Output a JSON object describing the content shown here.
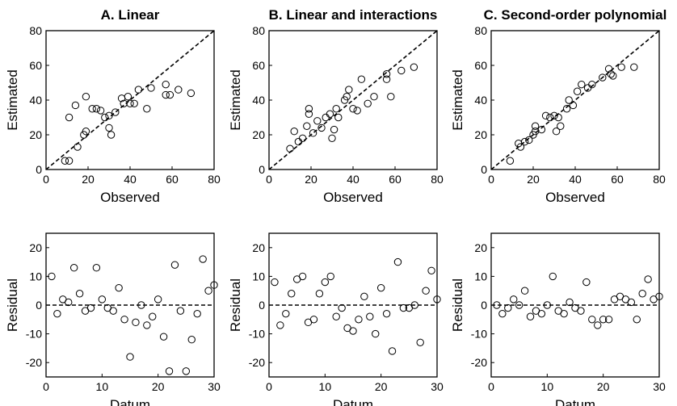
{
  "chart_data": [
    {
      "type": "scatter",
      "panel": "scatter",
      "title": "A. Linear",
      "xlabel": "Observed",
      "ylabel": "Estimated",
      "xlim": [
        0,
        80
      ],
      "ylim": [
        0,
        80
      ],
      "xticks": [
        0,
        20,
        40,
        60,
        80
      ],
      "yticks": [
        0,
        20,
        40,
        60,
        80
      ],
      "reference_line": "y = x (dashed)",
      "points": [
        [
          9,
          5
        ],
        [
          11,
          5
        ],
        [
          15,
          13
        ],
        [
          11,
          30
        ],
        [
          14,
          37
        ],
        [
          18,
          20
        ],
        [
          19,
          22
        ],
        [
          19,
          42
        ],
        [
          22,
          35
        ],
        [
          24,
          35
        ],
        [
          26,
          34
        ],
        [
          28,
          30
        ],
        [
          30,
          31
        ],
        [
          30,
          24
        ],
        [
          31,
          20
        ],
        [
          33,
          33
        ],
        [
          36,
          41
        ],
        [
          37,
          38
        ],
        [
          39,
          42
        ],
        [
          40,
          38
        ],
        [
          42,
          38
        ],
        [
          44,
          46
        ],
        [
          48,
          35
        ],
        [
          50,
          47
        ],
        [
          57,
          49
        ],
        [
          57,
          43
        ],
        [
          59,
          43
        ],
        [
          63,
          46
        ],
        [
          69,
          44
        ]
      ]
    },
    {
      "type": "scatter",
      "panel": "scatter",
      "title": "B. Linear and interactions",
      "xlabel": "Observed",
      "ylabel": "Estimated",
      "xlim": [
        0,
        80
      ],
      "ylim": [
        0,
        80
      ],
      "xticks": [
        0,
        20,
        40,
        60,
        80
      ],
      "yticks": [
        0,
        20,
        40,
        60,
        80
      ],
      "reference_line": "y = x (dashed)",
      "points": [
        [
          10,
          12
        ],
        [
          12,
          22
        ],
        [
          14,
          16
        ],
        [
          16,
          18
        ],
        [
          18,
          25
        ],
        [
          19,
          35
        ],
        [
          19,
          32
        ],
        [
          21,
          21
        ],
        [
          23,
          28
        ],
        [
          25,
          24
        ],
        [
          27,
          30
        ],
        [
          29,
          32
        ],
        [
          30,
          18
        ],
        [
          31,
          23
        ],
        [
          32,
          35
        ],
        [
          33,
          30
        ],
        [
          36,
          40
        ],
        [
          37,
          42
        ],
        [
          38,
          46
        ],
        [
          40,
          35
        ],
        [
          42,
          34
        ],
        [
          44,
          52
        ],
        [
          47,
          38
        ],
        [
          50,
          42
        ],
        [
          56,
          52
        ],
        [
          56,
          55
        ],
        [
          58,
          42
        ],
        [
          63,
          57
        ],
        [
          69,
          59
        ]
      ]
    },
    {
      "type": "scatter",
      "panel": "scatter",
      "title": "C. Second-order polynomial",
      "xlabel": "Observed",
      "ylabel": "Estimated",
      "xlim": [
        0,
        80
      ],
      "ylim": [
        0,
        80
      ],
      "xticks": [
        0,
        20,
        40,
        60,
        80
      ],
      "yticks": [
        0,
        20,
        40,
        60,
        80
      ],
      "reference_line": "y = x (dashed)",
      "points": [
        [
          9,
          5
        ],
        [
          13,
          15
        ],
        [
          14,
          13
        ],
        [
          16,
          16
        ],
        [
          18,
          17
        ],
        [
          20,
          20
        ],
        [
          21,
          22
        ],
        [
          21,
          25
        ],
        [
          24,
          23
        ],
        [
          26,
          31
        ],
        [
          28,
          30
        ],
        [
          30,
          31
        ],
        [
          31,
          22
        ],
        [
          32,
          30
        ],
        [
          33,
          25
        ],
        [
          36,
          35
        ],
        [
          37,
          40
        ],
        [
          39,
          37
        ],
        [
          41,
          45
        ],
        [
          43,
          49
        ],
        [
          46,
          47
        ],
        [
          48,
          49
        ],
        [
          53,
          53
        ],
        [
          56,
          58
        ],
        [
          57,
          55
        ],
        [
          58,
          54
        ],
        [
          62,
          59
        ],
        [
          68,
          59
        ]
      ]
    },
    {
      "type": "scatter",
      "panel": "residual",
      "xlabel": "Datum",
      "ylabel": "Residual",
      "xlim": [
        0,
        30
      ],
      "ylim": [
        -25,
        25
      ],
      "xticks": [
        0,
        10,
        20,
        30
      ],
      "yticks": [
        -20,
        -10,
        0,
        10,
        20
      ],
      "reference_line": "y = 0 (dashed)",
      "points": [
        [
          1,
          10
        ],
        [
          2,
          -3
        ],
        [
          3,
          2
        ],
        [
          4,
          1
        ],
        [
          5,
          13
        ],
        [
          6,
          4
        ],
        [
          7,
          -2
        ],
        [
          8,
          -1
        ],
        [
          9,
          13
        ],
        [
          10,
          2
        ],
        [
          11,
          -1
        ],
        [
          12,
          -2
        ],
        [
          13,
          6
        ],
        [
          14,
          -5
        ],
        [
          15,
          -18
        ],
        [
          16,
          -6
        ],
        [
          17,
          0
        ],
        [
          18,
          -7
        ],
        [
          19,
          -4
        ],
        [
          20,
          2
        ],
        [
          21,
          -11
        ],
        [
          22,
          -23
        ],
        [
          23,
          14
        ],
        [
          24,
          -2
        ],
        [
          25,
          -23
        ],
        [
          26,
          -12
        ],
        [
          27,
          -3
        ],
        [
          28,
          16
        ],
        [
          29,
          5
        ],
        [
          30,
          7
        ]
      ]
    },
    {
      "type": "scatter",
      "panel": "residual",
      "xlabel": "Datum",
      "ylabel": "Residual",
      "xlim": [
        0,
        30
      ],
      "ylim": [
        -25,
        25
      ],
      "xticks": [
        0,
        10,
        20,
        30
      ],
      "yticks": [
        -20,
        -10,
        0,
        10,
        20
      ],
      "reference_line": "y = 0 (dashed)",
      "points": [
        [
          1,
          8
        ],
        [
          2,
          -7
        ],
        [
          3,
          -3
        ],
        [
          4,
          4
        ],
        [
          5,
          9
        ],
        [
          6,
          10
        ],
        [
          7,
          -6
        ],
        [
          8,
          -5
        ],
        [
          9,
          4
        ],
        [
          10,
          8
        ],
        [
          11,
          10
        ],
        [
          12,
          -4
        ],
        [
          13,
          -1
        ],
        [
          14,
          -8
        ],
        [
          15,
          -9
        ],
        [
          16,
          -5
        ],
        [
          17,
          3
        ],
        [
          18,
          -4
        ],
        [
          19,
          -10
        ],
        [
          20,
          6
        ],
        [
          21,
          -3
        ],
        [
          22,
          -16
        ],
        [
          23,
          15
        ],
        [
          24,
          -1
        ],
        [
          25,
          -1
        ],
        [
          26,
          0
        ],
        [
          27,
          -13
        ],
        [
          28,
          5
        ],
        [
          29,
          12
        ],
        [
          30,
          2
        ]
      ]
    },
    {
      "type": "scatter",
      "panel": "residual",
      "xlabel": "Datum",
      "ylabel": "Residual",
      "xlim": [
        0,
        30
      ],
      "ylim": [
        -25,
        25
      ],
      "xticks": [
        0,
        10,
        20,
        30
      ],
      "yticks": [
        -20,
        -10,
        0,
        10,
        20
      ],
      "reference_line": "y = 0 (dashed)",
      "points": [
        [
          1,
          0
        ],
        [
          2,
          -3
        ],
        [
          3,
          -1
        ],
        [
          4,
          2
        ],
        [
          5,
          0
        ],
        [
          6,
          5
        ],
        [
          7,
          -4
        ],
        [
          8,
          -2
        ],
        [
          9,
          -3
        ],
        [
          10,
          0
        ],
        [
          11,
          10
        ],
        [
          12,
          -2
        ],
        [
          13,
          -3
        ],
        [
          14,
          1
        ],
        [
          15,
          -1
        ],
        [
          16,
          -2
        ],
        [
          17,
          8
        ],
        [
          18,
          -5
        ],
        [
          19,
          -7
        ],
        [
          20,
          -5
        ],
        [
          21,
          -5
        ],
        [
          22,
          2
        ],
        [
          23,
          3
        ],
        [
          24,
          2
        ],
        [
          25,
          1
        ],
        [
          26,
          -5
        ],
        [
          27,
          4
        ],
        [
          28,
          9
        ],
        [
          29,
          2
        ],
        [
          30,
          3
        ]
      ]
    }
  ]
}
